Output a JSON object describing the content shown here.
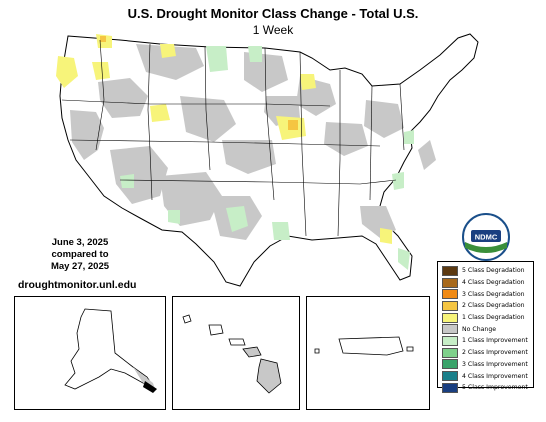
{
  "map_title": "U.S. Drought Monitor Class Change - Total U.S.",
  "map_subtitle": "1 Week",
  "date_current": "June 3, 2025",
  "compared_text": "compared to",
  "date_previous": "May 27, 2025",
  "website": "droughtmonitor.unl.edu",
  "logo_text": "NDMC",
  "legend": [
    {
      "label": "5 Class Degradation",
      "color": "#5c3a12"
    },
    {
      "label": "4 Class Degradation",
      "color": "#a86a1c"
    },
    {
      "label": "3 Class Degradation",
      "color": "#f08a14"
    },
    {
      "label": "2 Class Degradation",
      "color": "#f5c542"
    },
    {
      "label": "1 Class Degradation",
      "color": "#f7f47a"
    },
    {
      "label": "No Change",
      "color": "#c8c8c8"
    },
    {
      "label": "1 Class Improvement",
      "color": "#c7eec7"
    },
    {
      "label": "2 Class Improvement",
      "color": "#7fd18b"
    },
    {
      "label": "3 Class Improvement",
      "color": "#3aa36a"
    },
    {
      "label": "4 Class Improvement",
      "color": "#1a7f8a"
    },
    {
      "label": "5 Class Improvement",
      "color": "#1a3f80"
    }
  ],
  "colors": {
    "no_change": "#c8c8c8",
    "improvement_1": "#c7eec7",
    "improvement_2": "#7fd18b",
    "degradation_1": "#f7f47a",
    "degradation_2": "#f5c542",
    "boundary": "#000000"
  }
}
